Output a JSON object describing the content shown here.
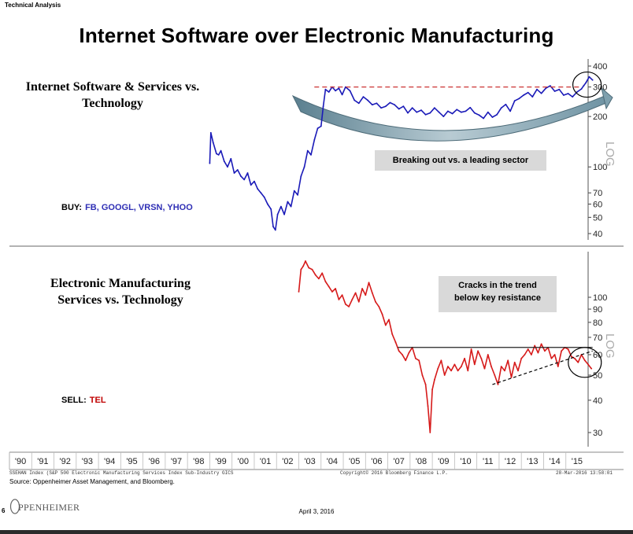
{
  "header": {
    "section_label": "Technical Analysis",
    "title": "Internet Software over Electronic Manufacturing"
  },
  "colors": {
    "top_series": "#1a1ab8",
    "bottom_series": "#d61a1a",
    "resistance_dashed": "#cc3333",
    "callout_bg": "#d9d9d9",
    "buy_ticker": "#2f2fb5",
    "sell_ticker": "#c00000"
  },
  "footer": {
    "index_line": "SSEHAN Index (S&P 500 Electronic Manufacturing Services Index Sub-Industry GICS",
    "copyright": "Copyright© 2016 Bloomberg Finance L.P.",
    "timestamp": "28-Mar-2016 13:58:01",
    "source": "Source: Oppenheimer Asset Management, and Bloomberg.",
    "page_number": "6",
    "logo_text": "PPENHEIMER",
    "date": "April 3, 2016"
  },
  "chart_data": [
    {
      "type": "line",
      "title": "Internet Software & Services vs. Technology",
      "scale": "log",
      "ylabel": "LOG",
      "ylim": [
        36,
        430
      ],
      "yticks": [
        400,
        300,
        200,
        100,
        70,
        60,
        50,
        40
      ],
      "ytick_labels": [
        "400",
        "300",
        "200",
        "100",
        "70",
        "60",
        "50",
        "40"
      ],
      "annotation": "Breaking out vs. a leading sector",
      "recommendation": {
        "label": "BUY:",
        "tickers": "FB, GOOGL, VRSN, YHOO"
      },
      "resistance_level": 300,
      "series": [
        {
          "x": [
            1999.0,
            1999.05,
            1999.15,
            1999.3,
            1999.4,
            1999.5,
            1999.65,
            1999.8,
            1999.95,
            2000.1,
            2000.25,
            2000.4,
            2000.55,
            2000.7,
            2000.85,
            2001.0,
            2001.15,
            2001.3,
            2001.45,
            2001.6,
            2001.75,
            2001.85,
            2001.95,
            2002.05,
            2002.2,
            2002.35,
            2002.5,
            2002.65,
            2002.8,
            2002.95,
            2003.1,
            2003.25,
            2003.4,
            2003.55,
            2003.7,
            2003.85,
            2004.0,
            2004.1,
            2004.2,
            2004.35,
            2004.5,
            2004.65,
            2004.8,
            2004.95,
            2005.1,
            2005.3,
            2005.5,
            2005.7,
            2005.9,
            2006.1,
            2006.3,
            2006.5,
            2006.7,
            2006.9,
            2007.1,
            2007.3,
            2007.5,
            2007.7,
            2007.9,
            2008.1,
            2008.3,
            2008.5,
            2008.7,
            2008.9,
            2009.1,
            2009.3,
            2009.5,
            2009.7,
            2009.9,
            2010.1,
            2010.3,
            2010.5,
            2010.7,
            2010.9,
            2011.1,
            2011.3,
            2011.5,
            2011.7,
            2011.9,
            2012.1,
            2012.3,
            2012.5,
            2012.7,
            2012.9,
            2013.1,
            2013.3,
            2013.5,
            2013.7,
            2013.9,
            2014.1,
            2014.3,
            2014.5,
            2014.7,
            2014.9,
            2015.1,
            2015.3,
            2015.5,
            2015.7,
            2015.8,
            2015.9,
            2016.05,
            2016.2
          ],
          "y": [
            105,
            160,
            140,
            120,
            118,
            125,
            108,
            100,
            112,
            92,
            96,
            88,
            84,
            92,
            78,
            82,
            74,
            70,
            66,
            60,
            56,
            44,
            42,
            52,
            58,
            52,
            62,
            58,
            72,
            68,
            88,
            100,
            125,
            118,
            145,
            170,
            175,
            230,
            290,
            280,
            300,
            285,
            295,
            270,
            300,
            285,
            250,
            240,
            262,
            250,
            235,
            240,
            225,
            230,
            242,
            235,
            222,
            230,
            210,
            225,
            212,
            218,
            205,
            210,
            225,
            212,
            200,
            215,
            208,
            220,
            212,
            215,
            226,
            210,
            204,
            195,
            212,
            198,
            205,
            225,
            236,
            215,
            248,
            256,
            268,
            278,
            262,
            290,
            275,
            295,
            305,
            283,
            290,
            268,
            274,
            262,
            280,
            292,
            305,
            318,
            345,
            330
          ]
        }
      ]
    },
    {
      "type": "line",
      "title": "Electronic Manufacturing Services vs. Technology",
      "scale": "log",
      "ylabel": "LOG",
      "ylim": [
        27,
        150
      ],
      "yticks": [
        100,
        90,
        80,
        70,
        60,
        50,
        40,
        30
      ],
      "ytick_labels": [
        "100",
        "90",
        "80",
        "70",
        "60",
        "50",
        "40",
        "30"
      ],
      "annotation": "Cracks in the trend\nbelow key resistance",
      "recommendation": {
        "label": "SELL:",
        "tickers": "TEL"
      },
      "resistance_level": 64,
      "series": [
        {
          "x": [
            2003.0,
            2003.1,
            2003.2,
            2003.3,
            2003.45,
            2003.6,
            2003.75,
            2003.9,
            2004.05,
            2004.2,
            2004.35,
            2004.5,
            2004.65,
            2004.8,
            2004.95,
            2005.1,
            2005.25,
            2005.4,
            2005.55,
            2005.7,
            2005.85,
            2006.0,
            2006.15,
            2006.3,
            2006.45,
            2006.6,
            2006.75,
            2006.9,
            2007.05,
            2007.2,
            2007.35,
            2007.5,
            2007.65,
            2007.8,
            2007.95,
            2008.1,
            2008.25,
            2008.4,
            2008.55,
            2008.7,
            2008.8,
            2008.9,
            2009.0,
            2009.1,
            2009.25,
            2009.4,
            2009.55,
            2009.7,
            2009.85,
            2010.0,
            2010.15,
            2010.3,
            2010.45,
            2010.6,
            2010.75,
            2010.9,
            2011.05,
            2011.2,
            2011.35,
            2011.5,
            2011.65,
            2011.8,
            2011.95,
            2012.1,
            2012.25,
            2012.4,
            2012.55,
            2012.7,
            2012.85,
            2013.0,
            2013.15,
            2013.3,
            2013.45,
            2013.6,
            2013.75,
            2013.9,
            2014.05,
            2014.2,
            2014.35,
            2014.5,
            2014.65,
            2014.8,
            2014.95,
            2015.1,
            2015.25,
            2015.4,
            2015.55,
            2015.7,
            2015.85,
            2016.0,
            2016.15
          ],
          "y": [
            105,
            128,
            132,
            138,
            130,
            128,
            122,
            118,
            124,
            115,
            110,
            105,
            108,
            98,
            102,
            94,
            92,
            98,
            104,
            96,
            108,
            102,
            114,
            104,
            96,
            92,
            86,
            78,
            82,
            72,
            67,
            62,
            60,
            57,
            61,
            64,
            58,
            57,
            50,
            46,
            38,
            30,
            44,
            48,
            53,
            57,
            50,
            54,
            52,
            55,
            52,
            54,
            58,
            52,
            63,
            55,
            62,
            58,
            53,
            60,
            54,
            50,
            46,
            54,
            52,
            57,
            49,
            56,
            52,
            58,
            60,
            63,
            60,
            65,
            61,
            66,
            62,
            64,
            58,
            60,
            54,
            62,
            64,
            63,
            59,
            58,
            56,
            60,
            57,
            55,
            53
          ]
        }
      ]
    }
  ],
  "x_axis": {
    "labels": [
      "'90",
      "'91",
      "'92",
      "'93",
      "'94",
      "'95",
      "'96",
      "'97",
      "'98",
      "'99",
      "'00",
      "'01",
      "'02",
      "'03",
      "'04",
      "'05",
      "'06",
      "'07",
      "'08",
      "'09",
      "'10",
      "'11",
      "'12",
      "'13",
      "'14",
      "'15"
    ],
    "start_year": 1990,
    "end_year": 2016
  }
}
